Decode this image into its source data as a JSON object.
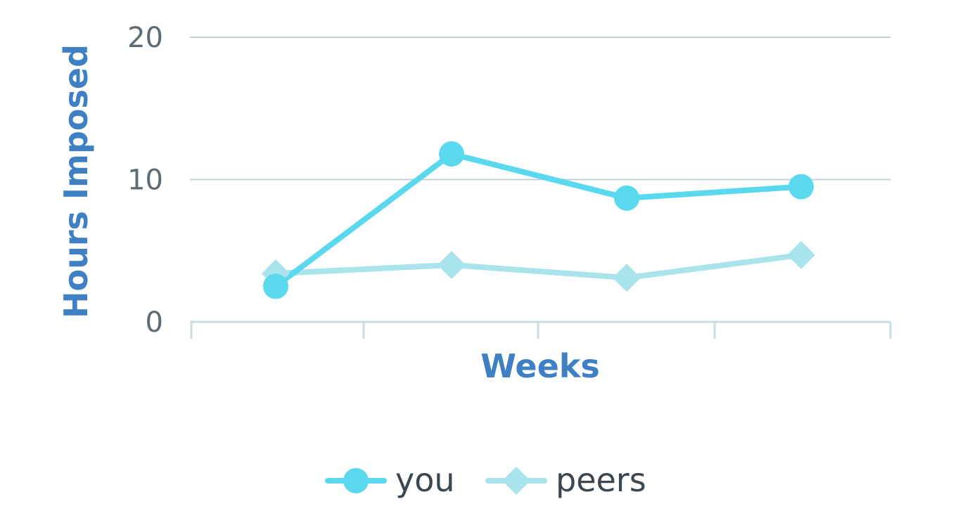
{
  "chart_data": {
    "type": "line",
    "categories": [
      "",
      "",
      "",
      ""
    ],
    "series": [
      {
        "name": "you",
        "values": [
          2.5,
          11.8,
          8.7,
          9.5
        ],
        "color": "#5ad8ee",
        "marker": "circle"
      },
      {
        "name": "peers",
        "values": [
          3.4,
          4.0,
          3.1,
          4.7
        ],
        "color": "#a9e3ec",
        "marker": "diamond"
      }
    ],
    "title": "",
    "xlabel": "Weeks",
    "ylabel": "Hours Imposed",
    "ylim": [
      0,
      20
    ],
    "yticks": [
      "0",
      "10",
      "20"
    ],
    "grid": true,
    "legend_position": "bottom-center",
    "colors": {
      "axis_title": "#3f7fc3",
      "gridline": "#c3d0d4",
      "axis_line": "#c9dde5",
      "tick_label": "#5f6b73"
    }
  }
}
